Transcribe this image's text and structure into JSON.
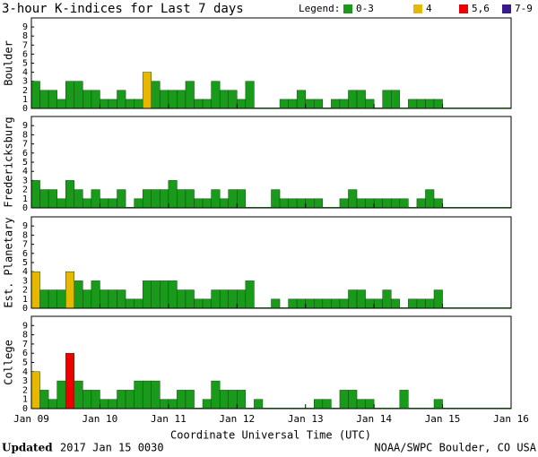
{
  "title": "3-hour K-indices for Last 7 days",
  "legend": {
    "label": "Legend:",
    "items": [
      {
        "label": "0-3",
        "color": "#1a9a1a"
      },
      {
        "label": "4",
        "color": "#e8b800"
      },
      {
        "label": "5,6",
        "color": "#ee0000"
      },
      {
        "label": "7-9",
        "color": "#3a1a90"
      }
    ]
  },
  "x_axis": {
    "label": "Coordinate Universal Time (UTC)",
    "xlim": [
      0,
      56
    ],
    "xticks": [
      {
        "value": 0,
        "label": "Jan 09"
      },
      {
        "value": 8,
        "label": "Jan 10"
      },
      {
        "value": 16,
        "label": "Jan 11"
      },
      {
        "value": 24,
        "label": "Jan 12"
      },
      {
        "value": 32,
        "label": "Jan 13"
      },
      {
        "value": 40,
        "label": "Jan 14"
      },
      {
        "value": 48,
        "label": "Jan 15"
      },
      {
        "value": 56,
        "label": "Jan 16"
      }
    ]
  },
  "footer": {
    "updated_label": "Updated",
    "updated_time": "2017 Jan 15 0030",
    "credit": "NOAA/SWPC Boulder, CO USA"
  },
  "chart_data": [
    {
      "type": "bar",
      "ylabel": "Boulder",
      "ylim": [
        0,
        10
      ],
      "yticks": [
        0,
        1,
        2,
        3,
        4,
        5,
        6,
        7,
        8,
        9
      ],
      "values": [
        3,
        2,
        2,
        1,
        3,
        3,
        2,
        2,
        1,
        1,
        2,
        1,
        1,
        4,
        3,
        2,
        2,
        2,
        3,
        1,
        1,
        3,
        2,
        2,
        1,
        3,
        0,
        0,
        0,
        1,
        1,
        2,
        1,
        1,
        0,
        1,
        1,
        2,
        2,
        1,
        0,
        2,
        2,
        0,
        1,
        1,
        1,
        1
      ]
    },
    {
      "type": "bar",
      "ylabel": "Fredericksburg",
      "ylim": [
        0,
        10
      ],
      "yticks": [
        0,
        1,
        2,
        3,
        4,
        5,
        6,
        7,
        8,
        9
      ],
      "values": [
        3,
        2,
        2,
        1,
        3,
        2,
        1,
        2,
        1,
        1,
        2,
        0,
        1,
        2,
        2,
        2,
        3,
        2,
        2,
        1,
        1,
        2,
        1,
        2,
        2,
        0,
        0,
        0,
        2,
        1,
        1,
        1,
        1,
        1,
        0,
        0,
        1,
        2,
        1,
        1,
        1,
        1,
        1,
        1,
        0,
        1,
        2,
        1
      ]
    },
    {
      "type": "bar",
      "ylabel": "Est. Planetary",
      "ylim": [
        0,
        10
      ],
      "yticks": [
        0,
        1,
        2,
        3,
        4,
        5,
        6,
        7,
        8,
        9
      ],
      "values": [
        4,
        2,
        2,
        2,
        4,
        3,
        2,
        3,
        2,
        2,
        2,
        1,
        1,
        3,
        3,
        3,
        3,
        2,
        2,
        1,
        1,
        2,
        2,
        2,
        2,
        3,
        0,
        0,
        1,
        0,
        1,
        1,
        1,
        1,
        1,
        1,
        1,
        2,
        2,
        1,
        1,
        2,
        1,
        0,
        1,
        1,
        1,
        2
      ]
    },
    {
      "type": "bar",
      "ylabel": "College",
      "ylim": [
        0,
        10
      ],
      "yticks": [
        0,
        1,
        2,
        3,
        4,
        5,
        6,
        7,
        8,
        9
      ],
      "values": [
        4,
        2,
        1,
        3,
        6,
        3,
        2,
        2,
        1,
        1,
        2,
        2,
        3,
        3,
        3,
        1,
        1,
        2,
        2,
        0,
        1,
        3,
        2,
        2,
        2,
        0,
        1,
        0,
        0,
        0,
        0,
        0,
        0,
        1,
        1,
        0,
        2,
        2,
        1,
        1,
        0,
        0,
        0,
        2,
        0,
        0,
        0,
        1
      ]
    }
  ]
}
